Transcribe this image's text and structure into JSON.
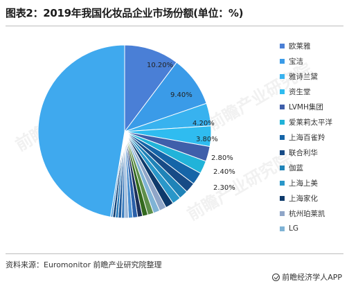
{
  "title": "图表2：2019年我国化妆品企业市场份额(单位：%)",
  "source": "资料来源：Euromonitor 前瞻产业研究院整理",
  "brand": "前瞻经济学人APP",
  "watermark_text": "前瞻产业研究院",
  "chart_data": {
    "type": "pie",
    "title": "2019年我国化妆品企业市场份额(单位：%)",
    "unit": "%",
    "slices": [
      {
        "label": "欧莱雅",
        "value": 10.2,
        "value_label": "10.20%",
        "color": "#4a7fd6"
      },
      {
        "label": "宝洁",
        "value": 9.4,
        "value_label": "9.40%",
        "color": "#3a9be8"
      },
      {
        "label": "雅诗兰黛",
        "value": 4.2,
        "value_label": "4.20%",
        "color": "#38b2ef"
      },
      {
        "label": "资生堂",
        "value": 3.8,
        "value_label": "3.80%",
        "color": "#2fbcf0"
      },
      {
        "label": "LVMH集团",
        "value": 2.8,
        "value_label": "2.80%",
        "color": "#3f5faa"
      },
      {
        "label": "爱莱莉太平洋",
        "value": 2.4,
        "value_label": "2.40%",
        "color": "#21b3d9"
      },
      {
        "label": "上海百雀羚",
        "value": 2.3,
        "value_label": "2.30%",
        "color": "#1565a8"
      },
      {
        "label": "联合利华",
        "value": 1.9,
        "value_label": "",
        "color": "#174b86"
      },
      {
        "label": "伽蓝",
        "value": 1.7,
        "value_label": "",
        "color": "#1f83b8"
      },
      {
        "label": "上海上美",
        "value": 1.6,
        "value_label": "",
        "color": "#2a97c9"
      },
      {
        "label": "上海家化",
        "value": 1.5,
        "value_label": "",
        "color": "#0e3a6b"
      },
      {
        "label": "杭州珀莱凯",
        "value": 1.3,
        "value_label": "",
        "color": "#8fa6c8"
      },
      {
        "label": "LG",
        "value": 1.2,
        "value_label": "",
        "color": "#7fb3d5"
      },
      {
        "label": "",
        "value": 1.1,
        "value_label": "",
        "color": "#5d8f4a"
      },
      {
        "label": "",
        "value": 1.0,
        "value_label": "",
        "color": "#33691e"
      },
      {
        "label": "",
        "value": 0.9,
        "value_label": "",
        "color": "#1b2f5a"
      },
      {
        "label": "",
        "value": 0.9,
        "value_label": "",
        "color": "#2a5fa8"
      },
      {
        "label": "",
        "value": 0.8,
        "value_label": "",
        "color": "#4a8fd0"
      },
      {
        "label": "",
        "value": 0.7,
        "value_label": "",
        "color": "#9db8d8"
      },
      {
        "label": "",
        "value": 0.6,
        "value_label": "",
        "color": "#3f7fbf"
      },
      {
        "label": "",
        "value": 0.6,
        "value_label": "",
        "color": "#1f5a9a"
      },
      {
        "label": "",
        "value": 0.5,
        "value_label": "",
        "color": "#2378b8"
      },
      {
        "label": "",
        "value": 0.5,
        "value_label": "",
        "color": "#0f3f74"
      },
      {
        "label": "",
        "value": 0.4,
        "value_label": "",
        "color": "#5aa0d8"
      },
      {
        "label": "",
        "value": 47.1,
        "value_label": "",
        "color": "#3fa9ee"
      }
    ],
    "legend": {
      "position": "right",
      "items": [
        {
          "label": "欧莱雅",
          "color": "#4a7fd6"
        },
        {
          "label": "宝洁",
          "color": "#3a9be8"
        },
        {
          "label": "雅诗兰黛",
          "color": "#38b2ef"
        },
        {
          "label": "资生堂",
          "color": "#2fbcf0"
        },
        {
          "label": "LVMH集团",
          "color": "#3f5faa"
        },
        {
          "label": "爱莱莉太平洋",
          "color": "#21b3d9"
        },
        {
          "label": "上海百雀羚",
          "color": "#1565a8"
        },
        {
          "label": "联合利华",
          "color": "#174b86"
        },
        {
          "label": "伽蓝",
          "color": "#1f83b8"
        },
        {
          "label": "上海上美",
          "color": "#2a97c9"
        },
        {
          "label": "上海家化",
          "color": "#0e3a6b"
        },
        {
          "label": "杭州珀莱凯",
          "color": "#8fa6c8"
        },
        {
          "label": "LG",
          "color": "#7fb3d5"
        }
      ]
    }
  }
}
